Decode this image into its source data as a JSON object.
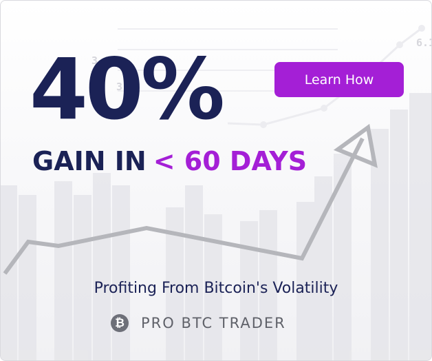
{
  "ad": {
    "headline_value": "40%",
    "subheadline_prefix": "GAIN IN",
    "subheadline_accent": "< 60 DAYS",
    "cta_label": "Learn How",
    "tagline": "Profiting From Bitcoin's Volatility",
    "brand_name": "PRO BTC TRADER",
    "brand_icon": "bitcoin-icon",
    "brand_icon_glyph": "₿",
    "background_labels": [
      "3.98",
      "3.",
      "6.1"
    ]
  },
  "colors": {
    "navy": "#1b2256",
    "purple": "#a41fd6",
    "gray_text": "#5f6169",
    "arrow_gray": "#b5b6bb"
  }
}
